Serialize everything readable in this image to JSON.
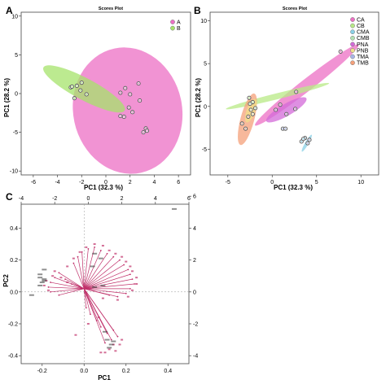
{
  "panels": {
    "a": {
      "letter": "A"
    },
    "b": {
      "letter": "B"
    },
    "c": {
      "letter": "C"
    }
  },
  "colors": {
    "A": "#ec6fc4",
    "B": "#a6e36b",
    "CA": "#ec6fc4",
    "CB": "#b8e986",
    "CMA": "#8ad0e6",
    "CMB": "#b2e0b2",
    "PNA": "#d36ad8",
    "PNB": "#f0e08a",
    "TMA": "#a8b5e8",
    "TMB": "#f4a07a",
    "overlap": "#d8a87a",
    "vector": "#c0306a",
    "label_red": "#c0306a",
    "label_dark": "#333333"
  },
  "chart_data": [
    {
      "id": "A",
      "type": "scatter",
      "title": "Scores Plot",
      "xlabel": "PC1 (32.3 %)",
      "ylabel": "PC1 (28.2 %)",
      "xlim": [
        -7,
        7
      ],
      "ylim": [
        -10.5,
        10.5
      ],
      "xticks": [
        -6,
        -4,
        -2,
        0,
        2,
        4,
        6
      ],
      "yticks": [
        -10,
        -5,
        0,
        5,
        10
      ],
      "legend": [
        "A",
        "B"
      ],
      "legend_position": "top-right",
      "series": [
        {
          "name": "A",
          "points": [
            [
              1.2,
              0.1
            ],
            [
              1.6,
              0.7
            ],
            [
              2.0,
              -0.1
            ],
            [
              1.9,
              -1.8
            ],
            [
              2.2,
              -2.4
            ],
            [
              1.2,
              -2.9
            ],
            [
              1.5,
              -3.0
            ],
            [
              3.3,
              -4.5
            ],
            [
              3.1,
              -5.0
            ],
            [
              3.4,
              -4.8
            ],
            [
              2.7,
              1.3
            ],
            [
              2.8,
              -0.9
            ]
          ]
        },
        {
          "name": "B",
          "points": [
            [
              -2.0,
              1.4
            ],
            [
              -2.4,
              1.0
            ],
            [
              -2.9,
              0.8
            ],
            [
              -2.1,
              0.4
            ],
            [
              -1.6,
              -0.1
            ],
            [
              -2.6,
              -0.6
            ],
            [
              -2.8,
              0.9
            ]
          ]
        }
      ],
      "ellipses": [
        {
          "group": "A",
          "cx": 1.8,
          "cy": -2.2,
          "rx": 4.5,
          "ry": 8.2,
          "rot_deg": -12
        },
        {
          "group": "B",
          "cx": -1.8,
          "cy": 0.6,
          "rx": 3.8,
          "ry": 1.4,
          "rot_deg": 28
        }
      ]
    },
    {
      "id": "B",
      "type": "scatter",
      "title": "Scores Plot",
      "xlabel": "PC1 (32.3 %)",
      "ylabel": "PC1 (28.2 %)",
      "xlim": [
        -7,
        12
      ],
      "ylim": [
        -8,
        11
      ],
      "xticks": [
        -5,
        0,
        5,
        10
      ],
      "yticks": [
        -5,
        0,
        5,
        10
      ],
      "legend": [
        "CA",
        "CB",
        "CMA",
        "CMB",
        "PNA",
        "PNB",
        "TMA",
        "TMB"
      ],
      "legend_position": "top-right",
      "series": [
        {
          "name": "CA",
          "points": [
            [
              7.7,
              6.4
            ],
            [
              2.7,
              1.7
            ],
            [
              0.9,
              0.2
            ]
          ]
        },
        {
          "name": "CB",
          "points": [
            [
              -2.6,
              1.0
            ],
            [
              -2.2,
              0.5
            ]
          ]
        },
        {
          "name": "CMA",
          "points": [
            [
              3.3,
              -4.1
            ],
            [
              3.7,
              -3.7
            ],
            [
              3.5,
              -3.8
            ]
          ]
        },
        {
          "name": "CMB",
          "points": [
            [
              -2.5,
              0.3
            ],
            [
              -1.9,
              -0.2
            ]
          ]
        },
        {
          "name": "PNA",
          "points": [
            [
              0.4,
              -0.4
            ],
            [
              1.6,
              -0.9
            ],
            [
              2.6,
              -0.3
            ]
          ]
        },
        {
          "name": "PNB",
          "points": [
            [
              -2.4,
              -0.4
            ],
            [
              -2.2,
              -0.9
            ]
          ]
        },
        {
          "name": "TMA",
          "points": [
            [
              1.2,
              -2.6
            ],
            [
              1.5,
              -2.6
            ],
            [
              4.2,
              -3.9
            ],
            [
              4.0,
              -4.3
            ]
          ]
        },
        {
          "name": "TMB",
          "points": [
            [
              -3.4,
              -2.0
            ],
            [
              -3.0,
              -2.6
            ],
            [
              -2.7,
              -1.2
            ]
          ]
        }
      ],
      "ellipses": [
        {
          "group": "CA",
          "cx": 3.9,
          "cy": 2.5,
          "rx": 7.4,
          "ry": 0.7,
          "rot_deg": -38
        },
        {
          "group": "CB",
          "cx": 0.6,
          "cy": 1.2,
          "rx": 6.0,
          "ry": 0.35,
          "rot_deg": -14
        },
        {
          "group": "PNA",
          "cx": 1.6,
          "cy": -0.4,
          "rx": 2.6,
          "ry": 0.7,
          "rot_deg": -30
        },
        {
          "group": "TMB",
          "cx": -2.8,
          "cy": -1.5,
          "rx": 3.0,
          "ry": 0.8,
          "rot_deg": -75
        },
        {
          "group": "CMA",
          "cx": 3.9,
          "cy": -4.3,
          "rx": 1.1,
          "ry": 0.2,
          "rot_deg": -60
        },
        {
          "group": "PNB",
          "cx": -2.4,
          "cy": -0.5,
          "rx": 1.4,
          "ry": 0.5,
          "rot_deg": -70
        }
      ]
    },
    {
      "id": "C",
      "type": "biplot",
      "xlabel": "PC1",
      "ylabel": "PC2",
      "xlim": [
        -0.3,
        0.5
      ],
      "ylim": [
        -0.45,
        0.55
      ],
      "xticks": [
        -0.2,
        0.0,
        0.2,
        0.4
      ],
      "yticks": [
        -0.4,
        -0.2,
        0.0,
        0.2,
        0.4
      ],
      "top_xlim": [
        -4,
        6
      ],
      "top_xticks": [
        -4,
        -2,
        0,
        2,
        4,
        6
      ],
      "right_ylim": [
        -4.5,
        5.5
      ],
      "right_yticks": [
        -4,
        -2,
        0,
        2,
        4,
        6
      ],
      "origin": [
        0.0,
        0.02
      ],
      "vectors": [
        [
          -0.05,
          0.18
        ],
        [
          -0.03,
          0.22
        ],
        [
          -0.01,
          0.25
        ],
        [
          0.02,
          0.27
        ],
        [
          0.05,
          0.28
        ],
        [
          0.08,
          0.26
        ],
        [
          0.11,
          0.24
        ],
        [
          0.14,
          0.22
        ],
        [
          0.17,
          0.2
        ],
        [
          0.19,
          0.17
        ],
        [
          0.21,
          0.14
        ],
        [
          0.22,
          0.11
        ],
        [
          0.23,
          0.08
        ],
        [
          0.24,
          0.05
        ],
        [
          0.22,
          0.02
        ],
        [
          0.2,
          -0.01
        ],
        [
          0.16,
          -0.03
        ],
        [
          0.12,
          -0.02
        ],
        [
          -0.06,
          0.05
        ],
        [
          -0.09,
          0.08
        ],
        [
          -0.12,
          0.12
        ],
        [
          -0.14,
          0.09
        ],
        [
          -0.16,
          0.06
        ],
        [
          -0.17,
          0.03
        ],
        [
          -0.16,
          0.0
        ],
        [
          -0.12,
          -0.02
        ],
        [
          0.14,
          -0.24
        ],
        [
          0.16,
          -0.28
        ],
        [
          0.13,
          -0.3
        ],
        [
          0.11,
          -0.26
        ],
        [
          0.1,
          -0.32
        ],
        [
          0.08,
          -0.22
        ],
        [
          0.06,
          -0.18
        ],
        [
          0.03,
          -0.14
        ],
        [
          0.01,
          -0.1
        ]
      ],
      "var_labels": [
        [
          -0.08,
          0.16
        ],
        [
          -0.05,
          0.21
        ],
        [
          -0.02,
          0.25
        ],
        [
          0.01,
          0.28
        ],
        [
          0.05,
          0.3
        ],
        [
          0.09,
          0.29
        ],
        [
          0.12,
          0.26
        ],
        [
          0.15,
          0.24
        ],
        [
          0.18,
          0.22
        ],
        [
          0.2,
          0.19
        ],
        [
          0.22,
          0.16
        ],
        [
          0.23,
          0.13
        ],
        [
          0.25,
          0.09
        ],
        [
          0.25,
          0.05
        ],
        [
          0.23,
          0.01
        ],
        [
          0.21,
          -0.03
        ],
        [
          0.16,
          -0.05
        ],
        [
          0.09,
          -0.04
        ],
        [
          -0.08,
          0.06
        ],
        [
          -0.11,
          0.09
        ],
        [
          -0.14,
          0.13
        ],
        [
          -0.15,
          0.1
        ],
        [
          -0.18,
          0.07
        ],
        [
          -0.19,
          0.04
        ],
        [
          -0.17,
          0.01
        ],
        [
          0.18,
          -0.3
        ],
        [
          0.17,
          -0.33
        ],
        [
          0.14,
          -0.33
        ],
        [
          0.12,
          -0.36
        ],
        [
          0.08,
          -0.38
        ],
        [
          0.1,
          -0.38
        ],
        [
          0.15,
          -0.37
        ],
        [
          0.07,
          -0.16
        ],
        [
          0.02,
          -0.2
        ],
        [
          -0.04,
          -0.27
        ]
      ],
      "sample_points": [
        [
          0.43,
          0.52
        ],
        [
          0.05,
          0.24
        ],
        [
          0.08,
          0.21
        ],
        [
          0.04,
          0.16
        ],
        [
          -0.19,
          0.14
        ],
        [
          -0.21,
          0.11
        ],
        [
          -0.21,
          0.09
        ],
        [
          -0.19,
          0.08
        ],
        [
          -0.19,
          0.07
        ],
        [
          -0.2,
          0.06
        ],
        [
          -0.21,
          0.04
        ],
        [
          -0.25,
          -0.02
        ],
        [
          0.09,
          0.04
        ],
        [
          0.05,
          0.03
        ],
        [
          0.1,
          -0.25
        ],
        [
          0.11,
          -0.3
        ],
        [
          0.13,
          -0.33
        ],
        [
          0.12,
          -0.35
        ],
        [
          0.14,
          -0.31
        ]
      ]
    }
  ]
}
